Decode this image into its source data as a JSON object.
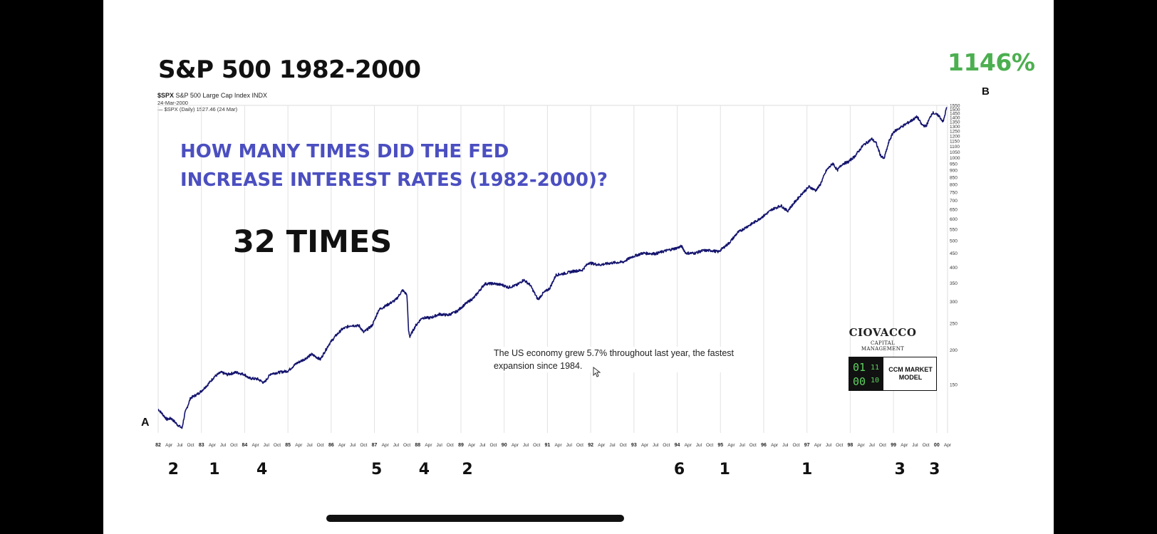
{
  "slide": {
    "title": "S&P 500 1982-2000",
    "percent_gain": "1146%",
    "question_line1": "HOW MANY TIMES DID THE FED",
    "question_line2": "INCREASE INTEREST RATES (1982-2000)?",
    "answer": "32 TIMES",
    "start_label": "A",
    "end_label": "B",
    "news_text": "The US economy grew 5.7% throughout last year, the fastest expansion since 1984.",
    "brand_name": "CIOVACCO",
    "brand_sub": "CAPITAL MANAGEMENT",
    "model_label": "CCM MARKET MODEL",
    "model_binary": [
      "01",
      "11",
      "00",
      "10"
    ]
  },
  "chart_header": {
    "symbol": "$SPX",
    "description": "S&P 500 Large Cap Index",
    "exchange": "INDX",
    "date": "24-Mar-2000",
    "legend": "— $SPX (Daily) 1527.46 (24 Mar)"
  },
  "colors": {
    "line": "#14146e",
    "accent_green": "#4caf50",
    "question_blue": "#4b4fc0",
    "gridline": "#e2e2e2"
  },
  "chart_data": {
    "type": "line",
    "title": "S&P 500 1982-2000",
    "series": [
      {
        "name": "$SPX (Daily)",
        "points": [
          [
            1982.0,
            122
          ],
          [
            1982.1,
            117
          ],
          [
            1982.2,
            112
          ],
          [
            1982.3,
            113
          ],
          [
            1982.45,
            107
          ],
          [
            1982.55,
            104
          ],
          [
            1982.62,
            118
          ],
          [
            1982.75,
            134
          ],
          [
            1982.9,
            138
          ],
          [
            1983.0,
            142
          ],
          [
            1983.15,
            150
          ],
          [
            1983.3,
            160
          ],
          [
            1983.45,
            166
          ],
          [
            1983.6,
            163
          ],
          [
            1983.8,
            166
          ],
          [
            1984.0,
            163
          ],
          [
            1984.1,
            158
          ],
          [
            1984.3,
            157
          ],
          [
            1984.45,
            152
          ],
          [
            1984.6,
            164
          ],
          [
            1984.8,
            166
          ],
          [
            1985.0,
            168
          ],
          [
            1985.2,
            179
          ],
          [
            1985.4,
            186
          ],
          [
            1985.55,
            193
          ],
          [
            1985.75,
            185
          ],
          [
            1985.95,
            210
          ],
          [
            1986.1,
            225
          ],
          [
            1986.25,
            238
          ],
          [
            1986.45,
            246
          ],
          [
            1986.65,
            245
          ],
          [
            1986.75,
            232
          ],
          [
            1986.95,
            246
          ],
          [
            1987.1,
            280
          ],
          [
            1987.3,
            292
          ],
          [
            1987.5,
            305
          ],
          [
            1987.65,
            330
          ],
          [
            1987.75,
            318
          ],
          [
            1987.79,
            235
          ],
          [
            1987.82,
            224
          ],
          [
            1987.95,
            245
          ],
          [
            1988.1,
            262
          ],
          [
            1988.3,
            262
          ],
          [
            1988.5,
            270
          ],
          [
            1988.7,
            268
          ],
          [
            1988.9,
            276
          ],
          [
            1989.1,
            294
          ],
          [
            1989.3,
            310
          ],
          [
            1989.55,
            348
          ],
          [
            1989.75,
            349
          ],
          [
            1989.95,
            345
          ],
          [
            1990.1,
            338
          ],
          [
            1990.3,
            345
          ],
          [
            1990.45,
            360
          ],
          [
            1990.6,
            345
          ],
          [
            1990.78,
            305
          ],
          [
            1990.9,
            322
          ],
          [
            1991.05,
            335
          ],
          [
            1991.2,
            375
          ],
          [
            1991.4,
            380
          ],
          [
            1991.6,
            387
          ],
          [
            1991.8,
            390
          ],
          [
            1991.95,
            415
          ],
          [
            1992.2,
            408
          ],
          [
            1992.5,
            415
          ],
          [
            1992.75,
            418
          ],
          [
            1992.95,
            436
          ],
          [
            1993.2,
            450
          ],
          [
            1993.5,
            448
          ],
          [
            1993.75,
            460
          ],
          [
            1994.0,
            470
          ],
          [
            1994.1,
            477
          ],
          [
            1994.2,
            450
          ],
          [
            1994.4,
            450
          ],
          [
            1994.6,
            460
          ],
          [
            1994.8,
            460
          ],
          [
            1994.95,
            455
          ],
          [
            1995.2,
            490
          ],
          [
            1995.4,
            535
          ],
          [
            1995.6,
            560
          ],
          [
            1995.8,
            585
          ],
          [
            1996.0,
            615
          ],
          [
            1996.2,
            650
          ],
          [
            1996.4,
            670
          ],
          [
            1996.55,
            640
          ],
          [
            1996.7,
            685
          ],
          [
            1996.9,
            745
          ],
          [
            1997.05,
            785
          ],
          [
            1997.2,
            760
          ],
          [
            1997.3,
            795
          ],
          [
            1997.45,
            900
          ],
          [
            1997.6,
            955
          ],
          [
            1997.7,
            900
          ],
          [
            1997.82,
            950
          ],
          [
            1997.95,
            965
          ],
          [
            1998.1,
            1010
          ],
          [
            1998.3,
            1110
          ],
          [
            1998.5,
            1170
          ],
          [
            1998.6,
            1130
          ],
          [
            1998.7,
            1020
          ],
          [
            1998.78,
            990
          ],
          [
            1998.9,
            1150
          ],
          [
            1999.0,
            1240
          ],
          [
            1999.2,
            1300
          ],
          [
            1999.4,
            1360
          ],
          [
            1999.55,
            1410
          ],
          [
            1999.65,
            1320
          ],
          [
            1999.75,
            1300
          ],
          [
            1999.9,
            1460
          ],
          [
            2000.05,
            1420
          ],
          [
            2000.15,
            1350
          ],
          [
            2000.23,
            1527
          ]
        ]
      }
    ],
    "ylabel": "",
    "xlabel": "",
    "scale": "log",
    "ylim": [
      100,
      1550
    ],
    "xlim": [
      1982.0,
      2000.25
    ],
    "y_ticks": [
      150,
      200,
      250,
      300,
      350,
      400,
      450,
      500,
      550,
      600,
      650,
      700,
      750,
      800,
      850,
      900,
      950,
      1000,
      1050,
      1100,
      1150,
      1200,
      1250,
      1300,
      1350,
      1400,
      1450,
      1500,
      1550
    ],
    "year_labels": [
      "82",
      "83",
      "84",
      "85",
      "86",
      "87",
      "88",
      "89",
      "90",
      "91",
      "92",
      "93",
      "94",
      "95",
      "96",
      "97",
      "98",
      "99",
      "00"
    ],
    "month_labels": [
      "Apr",
      "Jul",
      "Oct"
    ],
    "rate_hikes": [
      {
        "year": 1982.35,
        "count": "2"
      },
      {
        "year": 1983.3,
        "count": "1"
      },
      {
        "year": 1984.4,
        "count": "4"
      },
      {
        "year": 1987.05,
        "count": "5"
      },
      {
        "year": 1988.15,
        "count": "4"
      },
      {
        "year": 1989.15,
        "count": "2"
      },
      {
        "year": 1994.05,
        "count": "6"
      },
      {
        "year": 1995.1,
        "count": "1"
      },
      {
        "year": 1997.0,
        "count": "1"
      },
      {
        "year": 1999.15,
        "count": "3"
      },
      {
        "year": 1999.95,
        "count": "3"
      }
    ]
  }
}
